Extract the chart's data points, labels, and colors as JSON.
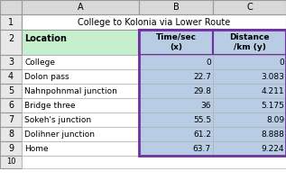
{
  "title": "College to Kolonia via Lower Route",
  "locations": [
    "College",
    "Dolon pass",
    "Nahnpohnmal junction",
    "Bridge three",
    "Sokeh's junction",
    "Dolihner junction",
    "Home"
  ],
  "time_x": [
    0,
    22.7,
    29.8,
    36,
    55.5,
    61.2,
    63.7
  ],
  "distance_y": [
    0,
    3.083,
    4.211,
    5.175,
    8.09,
    8.888,
    9.224
  ],
  "bg_white": "#ffffff",
  "header_green_bg": "#c6efce",
  "data_blue_bg": "#b8cce4",
  "col_header_gray": "#d9d9d9",
  "row_num_gray": "#e8e8e8",
  "selected_border": "#7030a0",
  "cell_border": "#b0b0b0",
  "col_header_border": "#999999"
}
